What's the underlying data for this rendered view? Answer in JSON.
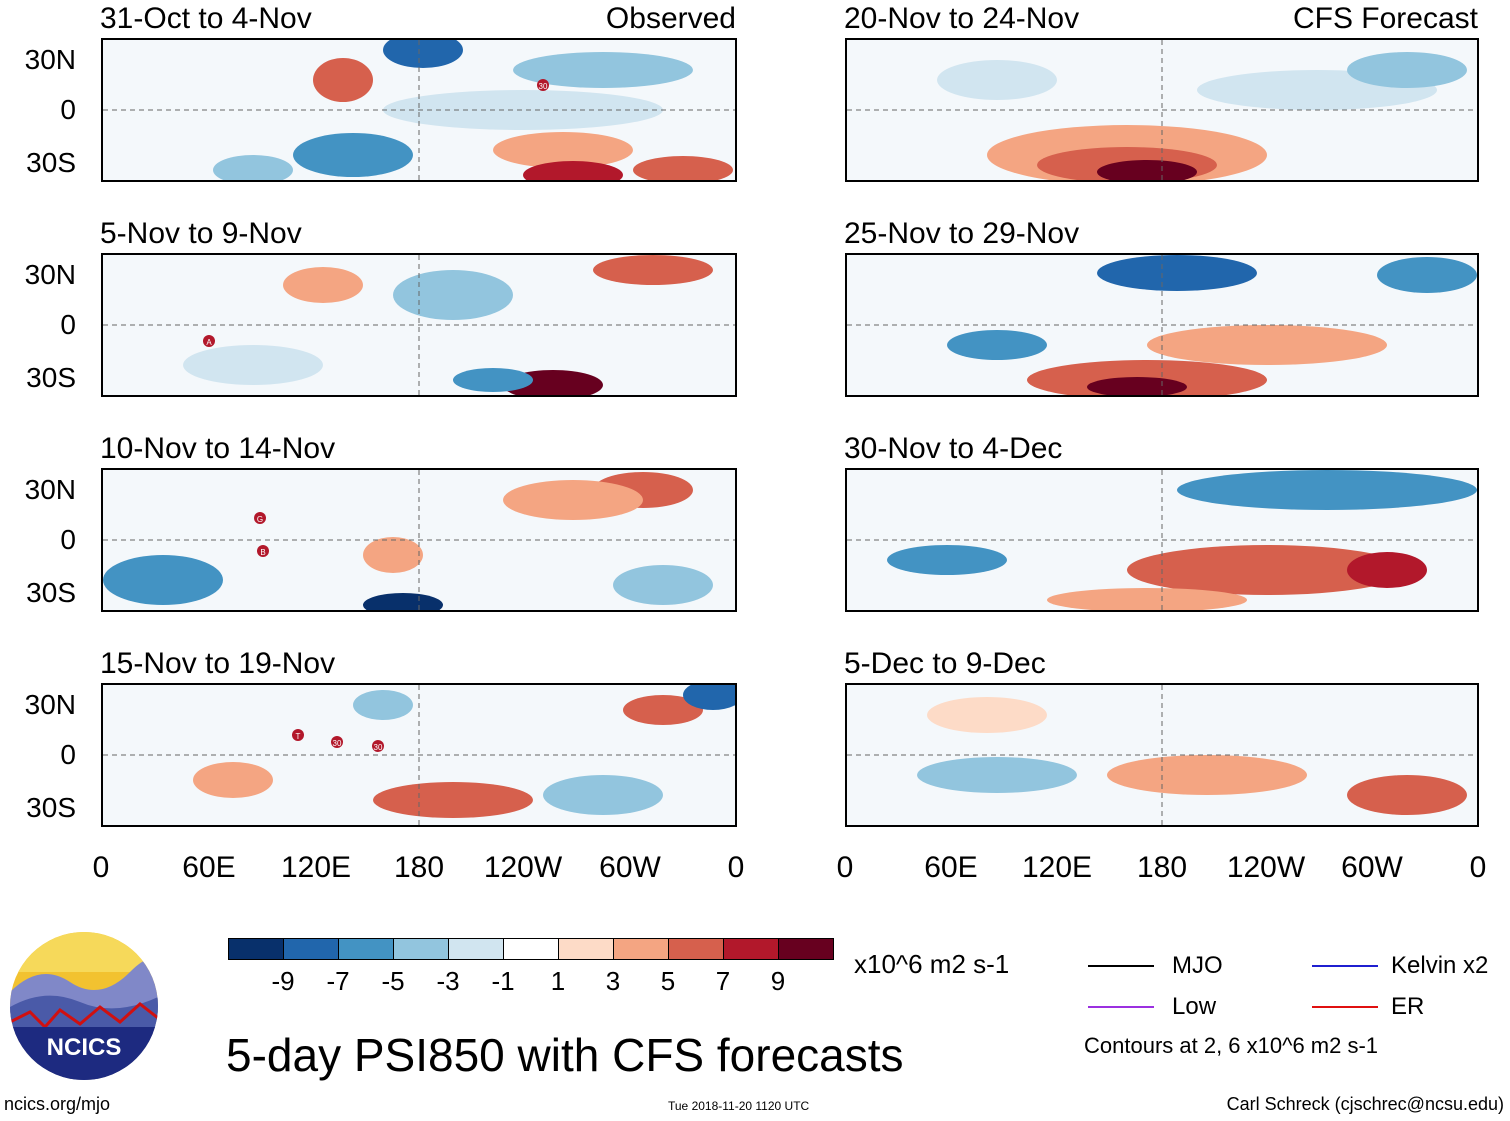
{
  "left_column": {
    "header_right": "Observed",
    "panels": [
      {
        "title": "31-Oct to 4-Nov"
      },
      {
        "title": "5-Nov to 9-Nov"
      },
      {
        "title": "10-Nov to 14-Nov"
      },
      {
        "title": "15-Nov to 19-Nov"
      }
    ]
  },
  "right_column": {
    "header_right": "CFS Forecast",
    "panels": [
      {
        "title": "20-Nov to 24-Nov"
      },
      {
        "title": "25-Nov to 29-Nov"
      },
      {
        "title": "30-Nov to 4-Dec"
      },
      {
        "title": "5-Dec to 9-Dec"
      }
    ]
  },
  "lat_labels": [
    "30N",
    "0",
    "30S"
  ],
  "lon_labels": [
    "0",
    "60E",
    "120E",
    "180",
    "120W",
    "60W",
    "0"
  ],
  "colorbar": {
    "colors": [
      "#08306b",
      "#2166ac",
      "#4393c3",
      "#92c5de",
      "#d1e5f0",
      "#ffffff",
      "#fddbc7",
      "#f4a582",
      "#d6604d",
      "#b2182b",
      "#67001f"
    ],
    "labels": [
      "-9",
      "-7",
      "-5",
      "-3",
      "-1",
      "1",
      "3",
      "5",
      "7",
      "9"
    ],
    "units": "x10^6 m2 s-1"
  },
  "legend": {
    "items": [
      {
        "label": "MJO",
        "color": "#000000"
      },
      {
        "label": "Kelvin x2",
        "color": "#1f1fd0"
      },
      {
        "label": "Low",
        "color": "#9b30e0"
      },
      {
        "label": "ER",
        "color": "#e01010"
      }
    ],
    "contour_note": "Contours at 2, 6 x10^6 m2 s-1"
  },
  "storm_labels": [
    "30",
    "A",
    "G",
    "B",
    "T",
    "30",
    "30"
  ],
  "logo": {
    "text": "NCICS"
  },
  "main_title": "5-day PSI850 with CFS forecasts",
  "footer": {
    "url": "ncics.org/mjo",
    "timestamp": "Tue 2018-11-20 1120 UTC",
    "author": "Carl Schreck (cjschrec@ncsu.edu)"
  }
}
